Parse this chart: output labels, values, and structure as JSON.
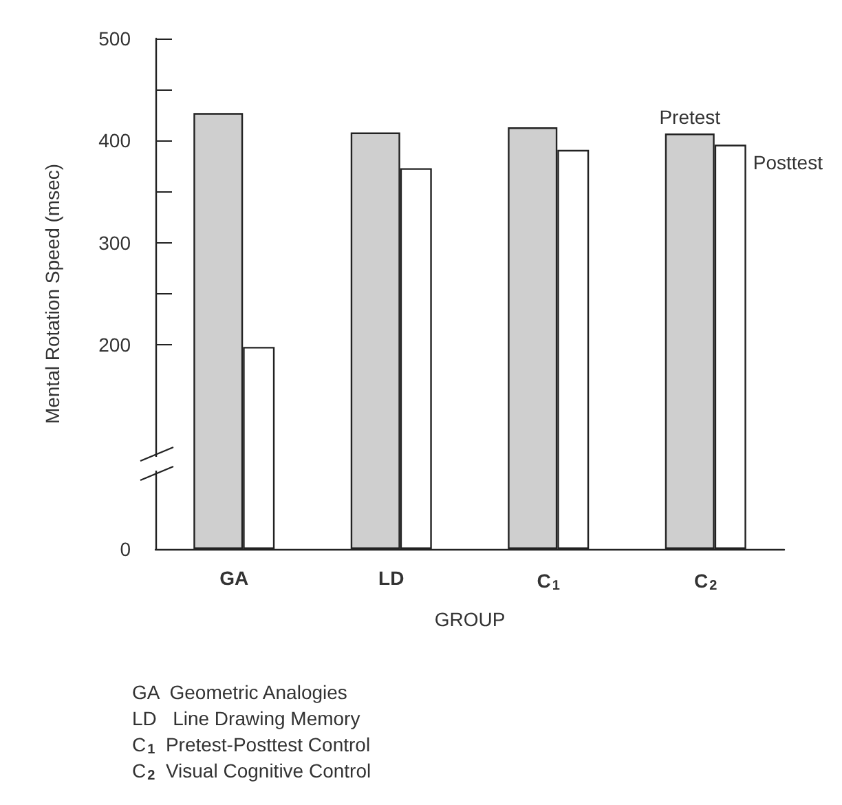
{
  "chart_data": {
    "type": "bar",
    "xlabel": "GROUP",
    "ylabel": "Mental Rotation Speed (msec)",
    "categories": [
      "GA",
      "LD",
      "C$_{1}$",
      "C$_{2}$"
    ],
    "series": [
      {
        "name": "Pretest",
        "color": "#cfcfcf",
        "values": [
          427,
          408,
          413,
          407
        ]
      },
      {
        "name": "Posttest",
        "color": "#ffffff",
        "values": [
          198,
          373,
          391,
          396
        ]
      }
    ],
    "ylim": [
      0,
      500
    ],
    "yticks": [
      0,
      200,
      {
        "value": 250,
        "label": null
      },
      300,
      {
        "value": 350,
        "label": null
      },
      400,
      {
        "value": 450,
        "label": null
      },
      500
    ],
    "grid": false,
    "legend": false,
    "annotations": [
      "GA  Geometric Analogies",
      "LD   Line Drawing Memory",
      "C$_{1}$  Pretest-Posttest Control",
      "C$_{2}$  Visual Cognitive Control"
    ]
  }
}
